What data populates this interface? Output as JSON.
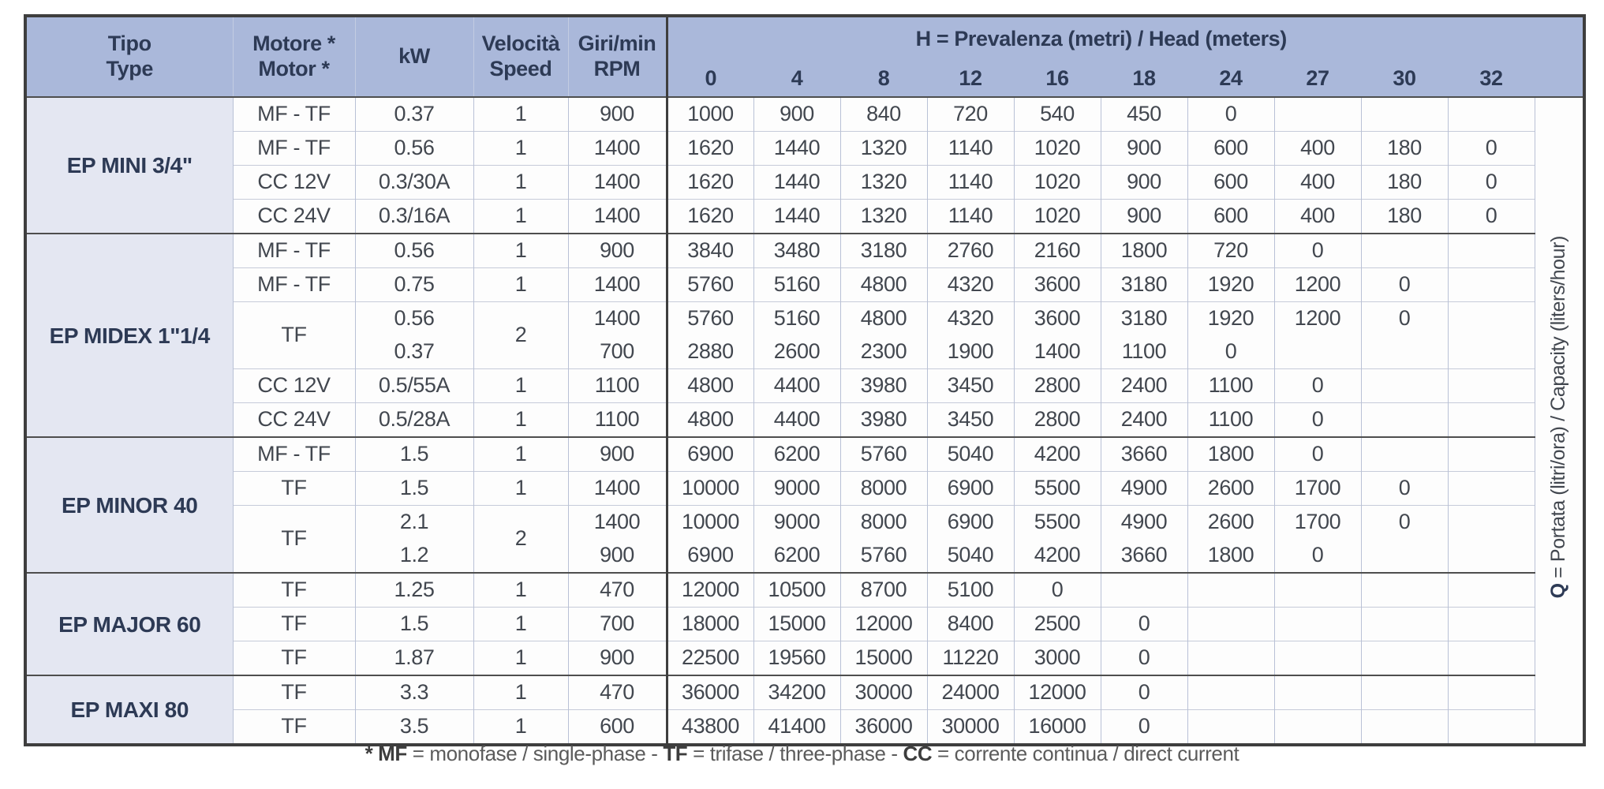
{
  "header": {
    "tipo_line1": "Tipo",
    "tipo_line2": "Type",
    "motore_line1": "Motore *",
    "motore_line2": "Motor *",
    "kw": "kW",
    "velocita_line1": "Velocità",
    "velocita_line2": "Speed",
    "giri_line1": "Giri/min",
    "giri_line2": "RPM",
    "h_title_bold": "H",
    "h_title_rest": " = Prevalenza (metri) / Head (meters)",
    "h_cols": [
      "0",
      "4",
      "8",
      "12",
      "16",
      "18",
      "24",
      "27",
      "30",
      "32"
    ]
  },
  "q_axis": {
    "bold": "Q",
    "rest": " = Portata (litri/ora) / Capacity (liters/hour)"
  },
  "colors": {
    "header_blue": "#aab8da",
    "group_lavender": "#e4e7f2",
    "dark_border": "#3e3e3e",
    "text_dark": "#2d3a55"
  },
  "groups": [
    {
      "name": "EP MINI 3/4\"",
      "rows": [
        {
          "motor": "MF - TF",
          "kw": "0.37",
          "speed": "1",
          "rpm": "900",
          "values": [
            "1000",
            "900",
            "840",
            "720",
            "540",
            "450",
            "0",
            "",
            "",
            ""
          ]
        },
        {
          "motor": "MF - TF",
          "kw": "0.56",
          "speed": "1",
          "rpm": "1400",
          "values": [
            "1620",
            "1440",
            "1320",
            "1140",
            "1020",
            "900",
            "600",
            "400",
            "180",
            "0"
          ]
        },
        {
          "motor": "CC 12V",
          "kw": "0.3/30A",
          "speed": "1",
          "rpm": "1400",
          "values": [
            "1620",
            "1440",
            "1320",
            "1140",
            "1020",
            "900",
            "600",
            "400",
            "180",
            "0"
          ]
        },
        {
          "motor": "CC 24V",
          "kw": "0.3/16A",
          "speed": "1",
          "rpm": "1400",
          "values": [
            "1620",
            "1440",
            "1320",
            "1140",
            "1020",
            "900",
            "600",
            "400",
            "180",
            "0"
          ]
        }
      ]
    },
    {
      "name": "EP MIDEX 1\"1/4",
      "rows": [
        {
          "motor": "MF - TF",
          "kw": "0.56",
          "speed": "1",
          "rpm": "900",
          "values": [
            "3840",
            "3480",
            "3180",
            "2760",
            "2160",
            "1800",
            "720",
            "0",
            "",
            ""
          ]
        },
        {
          "motor": "MF - TF",
          "kw": "0.75",
          "speed": "1",
          "rpm": "1400",
          "values": [
            "5760",
            "5160",
            "4800",
            "4320",
            "3600",
            "3180",
            "1920",
            "1200",
            "0",
            ""
          ]
        },
        {
          "motor": "TF",
          "kw": "0.56",
          "speed": "2",
          "rpm": "1400",
          "pair": "top",
          "values": [
            "5760",
            "5160",
            "4800",
            "4320",
            "3600",
            "3180",
            "1920",
            "1200",
            "0",
            ""
          ]
        },
        {
          "kw": "0.37",
          "rpm": "700",
          "pair": "bottom",
          "values": [
            "2880",
            "2600",
            "2300",
            "1900",
            "1400",
            "1100",
            "0",
            "",
            "",
            ""
          ]
        },
        {
          "motor": "CC 12V",
          "kw": "0.5/55A",
          "speed": "1",
          "rpm": "1100",
          "values": [
            "4800",
            "4400",
            "3980",
            "3450",
            "2800",
            "2400",
            "1100",
            "0",
            "",
            ""
          ]
        },
        {
          "motor": "CC 24V",
          "kw": "0.5/28A",
          "speed": "1",
          "rpm": "1100",
          "values": [
            "4800",
            "4400",
            "3980",
            "3450",
            "2800",
            "2400",
            "1100",
            "0",
            "",
            ""
          ]
        }
      ]
    },
    {
      "name": "EP MINOR 40",
      "rows": [
        {
          "motor": "MF - TF",
          "kw": "1.5",
          "speed": "1",
          "rpm": "900",
          "values": [
            "6900",
            "6200",
            "5760",
            "5040",
            "4200",
            "3660",
            "1800",
            "0",
            "",
            ""
          ]
        },
        {
          "motor": "TF",
          "kw": "1.5",
          "speed": "1",
          "rpm": "1400",
          "values": [
            "10000",
            "9000",
            "8000",
            "6900",
            "5500",
            "4900",
            "2600",
            "1700",
            "0",
            ""
          ]
        },
        {
          "motor": "TF",
          "kw": "2.1",
          "speed": "2",
          "rpm": "1400",
          "pair": "top",
          "values": [
            "10000",
            "9000",
            "8000",
            "6900",
            "5500",
            "4900",
            "2600",
            "1700",
            "0",
            ""
          ]
        },
        {
          "kw": "1.2",
          "rpm": "900",
          "pair": "bottom",
          "values": [
            "6900",
            "6200",
            "5760",
            "5040",
            "4200",
            "3660",
            "1800",
            "0",
            "",
            ""
          ]
        }
      ]
    },
    {
      "name": "EP MAJOR 60",
      "rows": [
        {
          "motor": "TF",
          "kw": "1.25",
          "speed": "1",
          "rpm": "470",
          "values": [
            "12000",
            "10500",
            "8700",
            "5100",
            "0",
            "",
            "",
            "",
            "",
            ""
          ]
        },
        {
          "motor": "TF",
          "kw": "1.5",
          "speed": "1",
          "rpm": "700",
          "values": [
            "18000",
            "15000",
            "12000",
            "8400",
            "2500",
            "0",
            "",
            "",
            "",
            ""
          ]
        },
        {
          "motor": "TF",
          "kw": "1.87",
          "speed": "1",
          "rpm": "900",
          "values": [
            "22500",
            "19560",
            "15000",
            "11220",
            "3000",
            "0",
            "",
            "",
            "",
            ""
          ]
        }
      ]
    },
    {
      "name": "EP MAXI 80",
      "rows": [
        {
          "motor": "TF",
          "kw": "3.3",
          "speed": "1",
          "rpm": "470",
          "values": [
            "36000",
            "34200",
            "30000",
            "24000",
            "12000",
            "0",
            "",
            "",
            "",
            ""
          ]
        },
        {
          "motor": "TF",
          "kw": "3.5",
          "speed": "1",
          "rpm": "600",
          "values": [
            "43800",
            "41400",
            "36000",
            "30000",
            "16000",
            "0",
            "",
            "",
            "",
            ""
          ]
        }
      ]
    }
  ],
  "footnote_segments": [
    {
      "text": "* MF",
      "bold": true
    },
    {
      "text": " = monofase / single-phase - ",
      "bold": false
    },
    {
      "text": "TF",
      "bold": true
    },
    {
      "text": " = trifase / three-phase - ",
      "bold": false
    },
    {
      "text": "CC",
      "bold": true
    },
    {
      "text": " = corrente continua / direct current",
      "bold": false
    }
  ]
}
